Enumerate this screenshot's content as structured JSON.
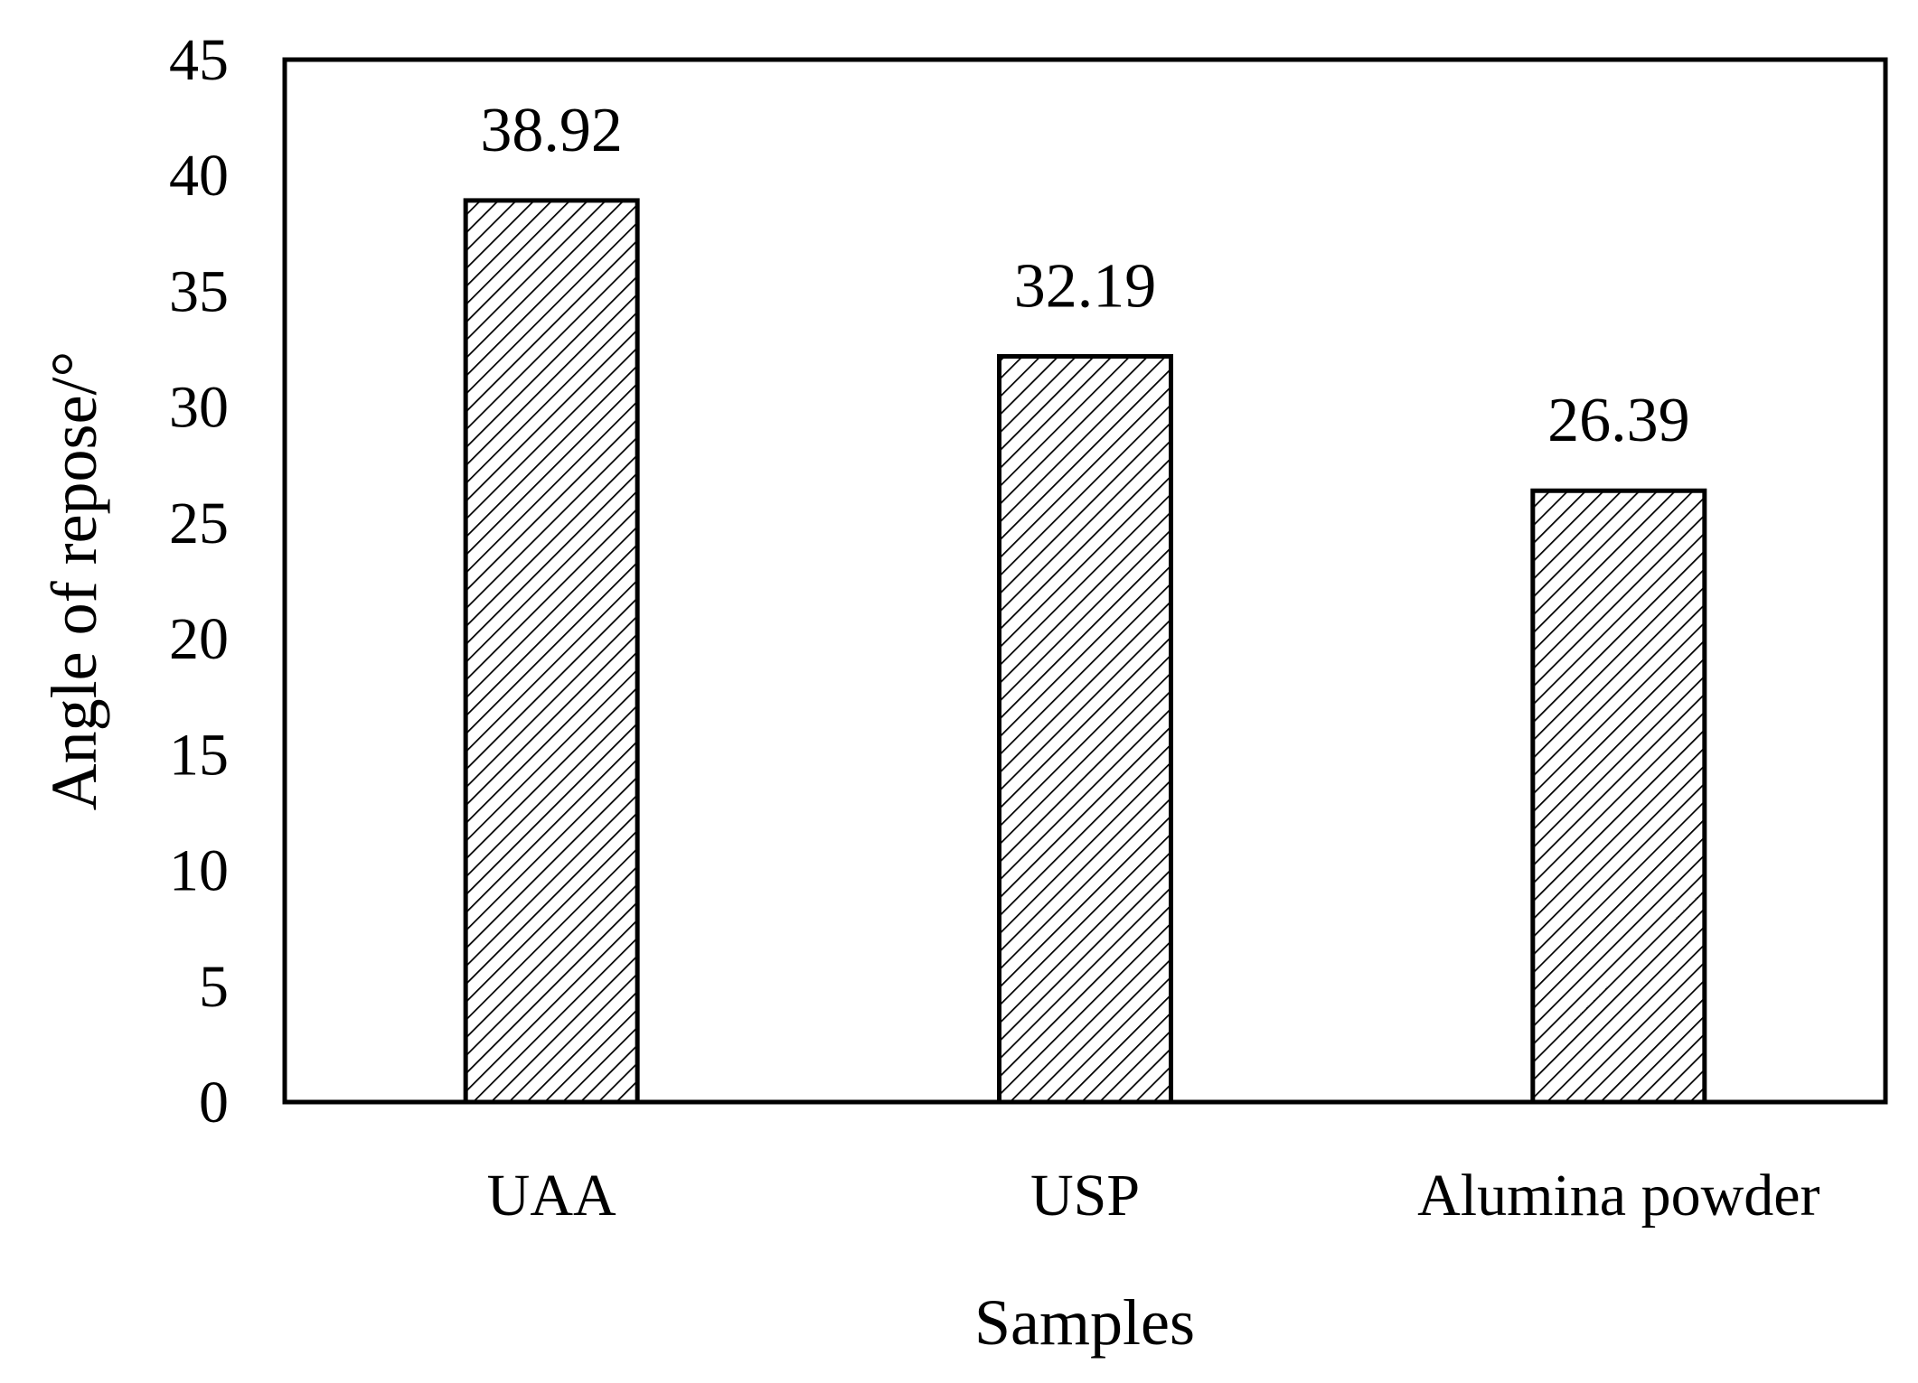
{
  "chart_data": {
    "type": "bar",
    "categories": [
      "UAA",
      "USP",
      "Alumina powder"
    ],
    "values": [
      38.92,
      32.19,
      26.39
    ],
    "data_labels": [
      "38.92",
      "32.19",
      "26.39"
    ],
    "title": "",
    "xlabel": "Samples",
    "ylabel": "Angle of repose/°",
    "ylim": [
      0,
      45
    ],
    "yticks": [
      0,
      5,
      10,
      15,
      20,
      25,
      30,
      35,
      40,
      45
    ],
    "ytick_labels": [
      "0",
      "5",
      "10",
      "15",
      "20",
      "25",
      "30",
      "35",
      "40",
      "45"
    ],
    "grid": false,
    "legend": "none",
    "bar_fill": "diagonal-hatch",
    "colors": {
      "bar_edge": "#000000",
      "hatch": "#000000",
      "background": "#ffffff"
    }
  }
}
